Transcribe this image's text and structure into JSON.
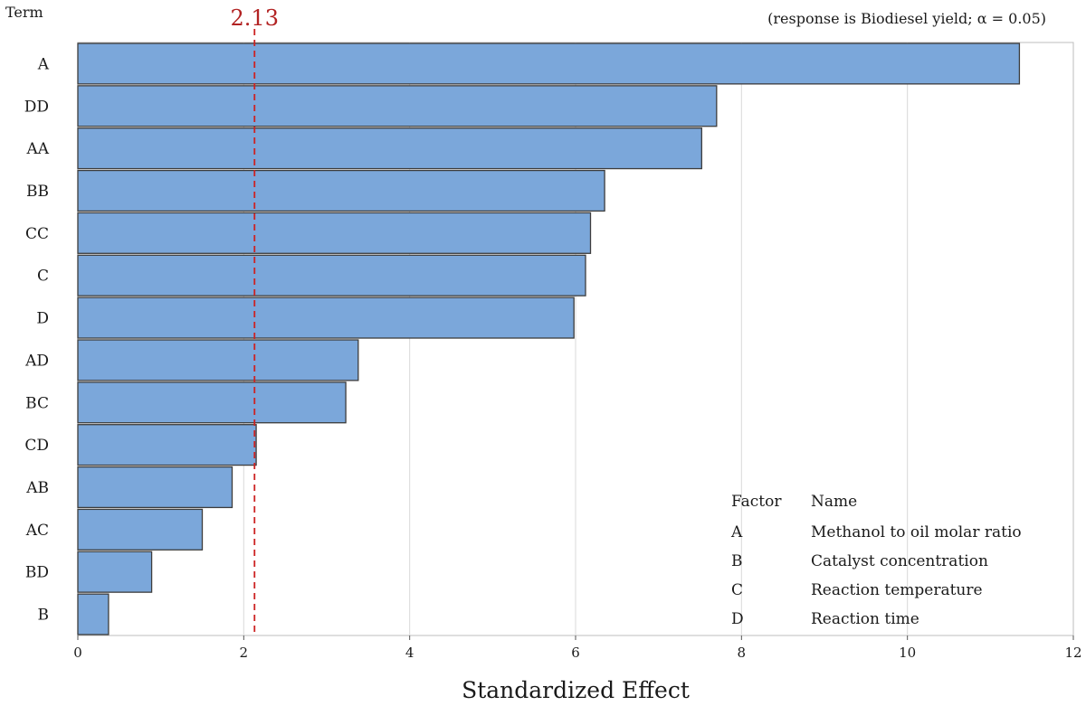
{
  "chart_data": {
    "type": "bar",
    "orientation": "horizontal",
    "title": "",
    "subtitle": "(response is Biodiesel yield; α = 0.05)",
    "ylabel": "Term",
    "xlabel": "Standardized Effect",
    "categories": [
      "A",
      "DD",
      "AA",
      "BB",
      "CC",
      "C",
      "D",
      "AD",
      "BC",
      "CD",
      "AB",
      "AC",
      "BD",
      "B"
    ],
    "values": [
      11.35,
      7.7,
      7.52,
      6.35,
      6.18,
      6.12,
      5.98,
      3.38,
      3.23,
      2.15,
      1.86,
      1.5,
      0.89,
      0.37
    ],
    "xlim": [
      0,
      12
    ],
    "xticks": [
      0,
      2,
      4,
      6,
      8,
      10,
      12
    ],
    "grid": true,
    "bar_color": "#7ba7da",
    "reference_line": {
      "value": 2.13,
      "label": "2.13",
      "color": "#cc2222"
    },
    "legend": {
      "placement": "bottom-right",
      "header": [
        "Factor",
        "Name"
      ],
      "rows": [
        [
          "A",
          "Methanol to oil molar ratio"
        ],
        [
          "B",
          "Catalyst concentration"
        ],
        [
          "C",
          "Reaction temperature"
        ],
        [
          "D",
          "Reaction time"
        ]
      ]
    }
  }
}
